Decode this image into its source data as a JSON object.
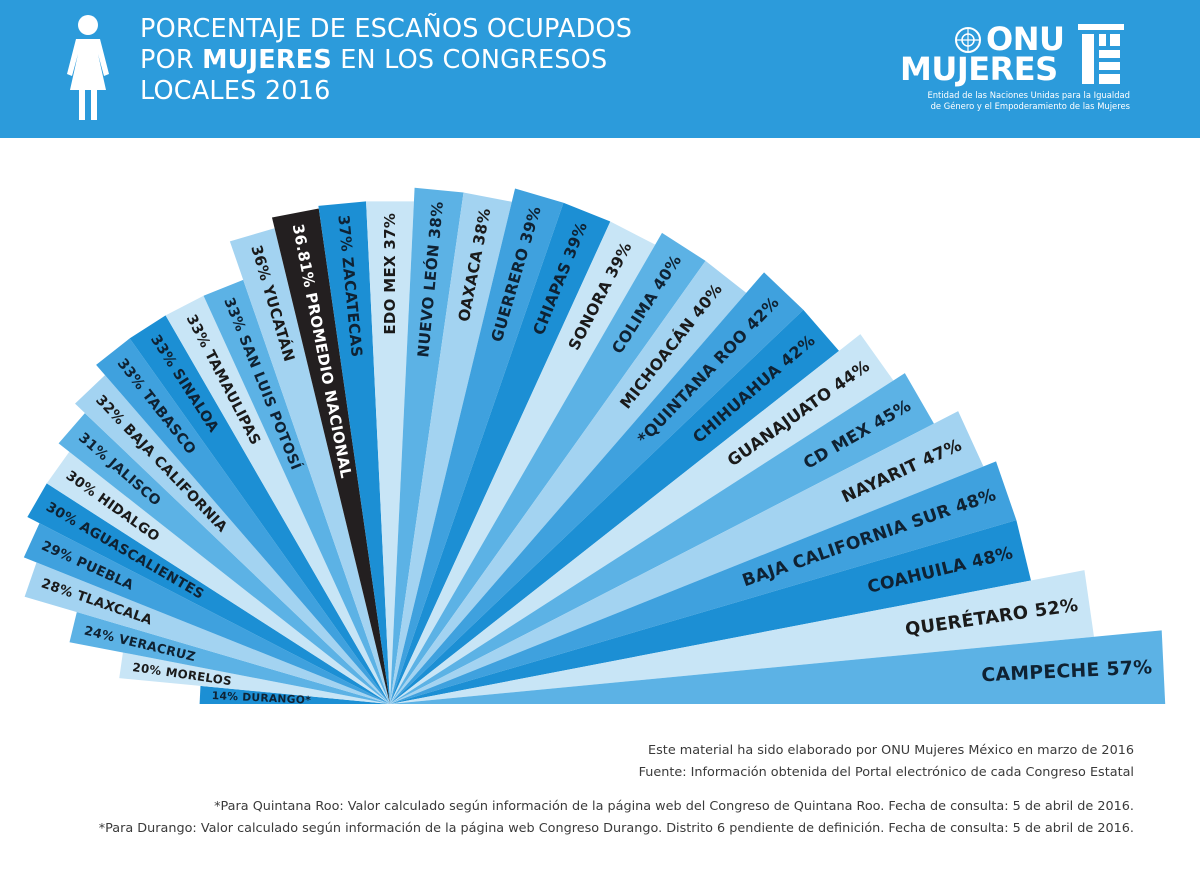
{
  "header": {
    "title_line1": "PORCENTAJE DE ESCAÑOS OCUPADOS",
    "title_line2_pre": "POR ",
    "title_line2_bold": "MUJERES",
    "title_line2_post": " EN LOS CONGRESOS",
    "title_line3": "LOCALES 2016",
    "icon": "woman-icon",
    "background_color": "#2c9bdb"
  },
  "logo": {
    "word1": "ONU",
    "word2": "MUJERES",
    "tagline_line1": "Entidad de las Naciones Unidas para la Igualdad",
    "tagline_line2": "de Género y el Empoderamiento de las Mujeres",
    "icons": [
      "un-globe-icon",
      "onu-mujeres-mark-icon"
    ]
  },
  "chart_data": {
    "type": "bar",
    "layout": "semicircular fan, ascending from left to right",
    "value_unit": "%",
    "categories": [
      {
        "label": "14%  DURANGO*",
        "name": "DURANGO*",
        "value": 14
      },
      {
        "label": "20%  MORELOS",
        "name": "MORELOS",
        "value": 20
      },
      {
        "label": "24%  VERACRUZ",
        "name": "VERACRUZ",
        "value": 24
      },
      {
        "label": "28%  TLAXCALA",
        "name": "TLAXCALA",
        "value": 28
      },
      {
        "label": "29%  PUEBLA",
        "name": "PUEBLA",
        "value": 29
      },
      {
        "label": "30%  AGUASCALIENTES",
        "name": "AGUASCALIENTES",
        "value": 30
      },
      {
        "label": "30%  HIDALGO",
        "name": "HIDALGO",
        "value": 30
      },
      {
        "label": "31%  JALISCO",
        "name": "JALISCO",
        "value": 31
      },
      {
        "label": "32%  BAJA CALIFORNIA",
        "name": "BAJA CALIFORNIA",
        "value": 32
      },
      {
        "label": "33%  TABASCO",
        "name": "TABASCO",
        "value": 33
      },
      {
        "label": "33%  SINALOA",
        "name": "SINALOA",
        "value": 33
      },
      {
        "label": "33%  TAMAULIPAS",
        "name": "TAMAULIPAS",
        "value": 33
      },
      {
        "label": "33%  SAN LUIS POTOSÍ",
        "name": "SAN LUIS POTOSÍ",
        "value": 33
      },
      {
        "label": "36%  YUCATÁN",
        "name": "YUCATÁN",
        "value": 36
      },
      {
        "label": "36.81%  PROMEDIO NACIONAL",
        "name": "PROMEDIO NACIONAL",
        "value": 36.81,
        "highlight": true
      },
      {
        "label": "37%  ZACATECAS",
        "name": "ZACATECAS",
        "value": 37
      },
      {
        "label": "EDO MEX 37%",
        "name": "EDO MEX",
        "value": 37
      },
      {
        "label": "NUEVO LEÓN 38%",
        "name": "NUEVO LEÓN",
        "value": 38
      },
      {
        "label": "OAXACA  38%",
        "name": "OAXACA",
        "value": 38
      },
      {
        "label": "GUERRERO 39%",
        "name": "GUERRERO",
        "value": 39
      },
      {
        "label": "CHIAPAS 39%",
        "name": "CHIAPAS",
        "value": 39
      },
      {
        "label": "SONORA  39%",
        "name": "SONORA",
        "value": 39
      },
      {
        "label": "COLIMA  40%",
        "name": "COLIMA",
        "value": 40
      },
      {
        "label": "MICHOACÁN  40%",
        "name": "MICHOACÁN",
        "value": 40
      },
      {
        "label": "*QUINTANA ROO  42%",
        "name": "*QUINTANA ROO",
        "value": 42
      },
      {
        "label": "CHIHUAHUA  42%",
        "name": "CHIHUAHUA",
        "value": 42
      },
      {
        "label": "GUANAJUATO  44%",
        "name": "GUANAJUATO",
        "value": 44
      },
      {
        "label": "CD MEX  45%",
        "name": "CD MEX",
        "value": 45
      },
      {
        "label": "NAYARIT  47%",
        "name": "NAYARIT",
        "value": 47
      },
      {
        "label": "BAJA CALIFORNIA SUR 48%",
        "name": "BAJA CALIFORNIA SUR",
        "value": 48
      },
      {
        "label": "COAHUILA  48%",
        "name": "COAHUILA",
        "value": 48
      },
      {
        "label": "QUERÉTARO  52%",
        "name": "QUERÉTARO",
        "value": 52
      },
      {
        "label": "CAMPECHE  57%",
        "name": "CAMPECHE",
        "value": 57
      }
    ],
    "colors": {
      "alternating": [
        "#1c8fd4",
        "#c8e5f6",
        "#5cb2e5",
        "#a3d3f1",
        "#3fa1de"
      ],
      "highlight": "#231f20",
      "label_dark": "#1a1a1a",
      "label_light": "#ffffff"
    }
  },
  "notes": {
    "line1": "Este material ha sido elaborado por ONU Mujeres México en marzo de 2016",
    "line2": "Fuente: Información obtenida del Portal electrónico de cada Congreso Estatal",
    "line3": "*Para Quintana Roo: Valor calculado según información de la página web del Congreso de Quintana Roo. Fecha de consulta: 5 de abril de 2016.",
    "line4": "*Para Durango: Valor calculado según información de la página web Congreso Durango. Distrito 6 pendiente de definición. Fecha de consulta: 5 de abril de 2016."
  }
}
